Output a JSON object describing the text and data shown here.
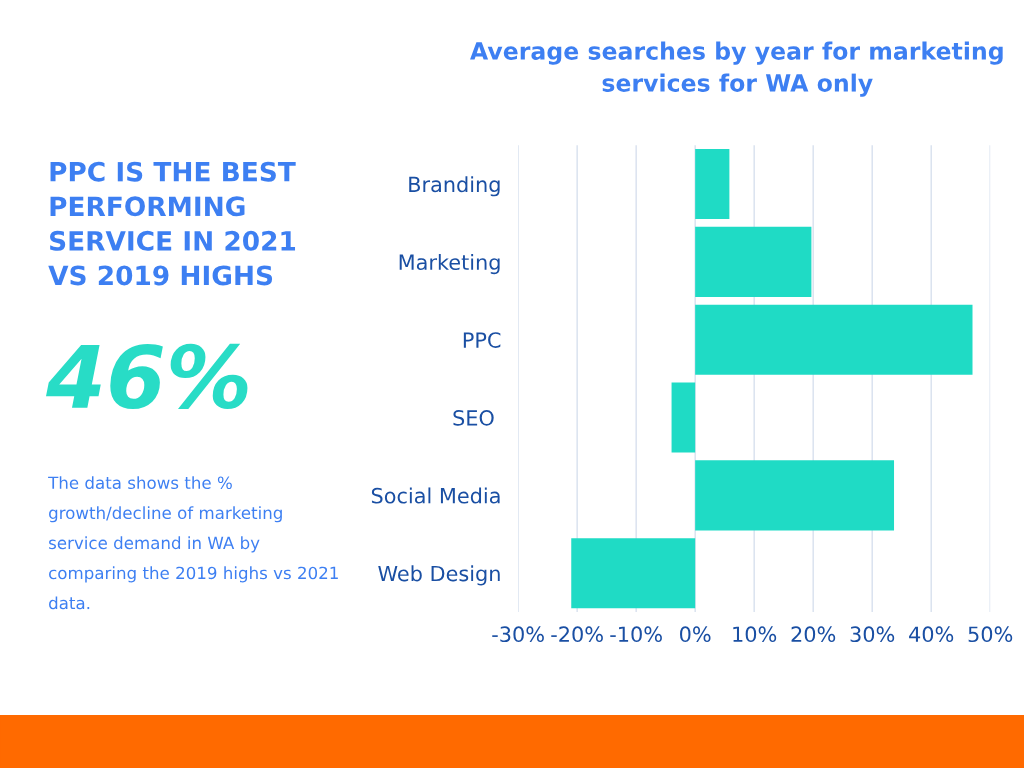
{
  "chart_data": {
    "type": "bar",
    "orientation": "horizontal",
    "title": "Average searches by year for marketing\nservices for WA only",
    "categories": [
      "Branding",
      "Marketing",
      "PPC",
      "SEO ",
      "Social Media",
      "Web Design"
    ],
    "values": [
      5.8,
      19.7,
      47,
      -4,
      33.7,
      -21
    ],
    "color": "#1fdbc5",
    "xlim": [
      -30,
      50
    ],
    "xticks": [
      {
        "value": -30,
        "label": "-30%"
      },
      {
        "value": -20,
        "label": "-20%"
      },
      {
        "value": -10,
        "label": "-10%"
      },
      {
        "value": 0,
        "label": "0%"
      },
      {
        "value": 10,
        "label": "10%"
      },
      {
        "value": 20,
        "label": "20%"
      },
      {
        "value": 30,
        "label": "30%"
      },
      {
        "value": 40,
        "label": "40%"
      },
      {
        "value": 50,
        "label": "50%"
      }
    ],
    "grid": "x",
    "annotations": [
      "PPC IS THE BEST\nPERFORMING\nSERVICE IN 2021\nVS 2019 HIGHS",
      "46%",
      "The data shows the %\ngrowth/decline of marketing\nservice demand in WA by\ncomparing the 2019 highs vs 2021\ndata."
    ]
  }
}
